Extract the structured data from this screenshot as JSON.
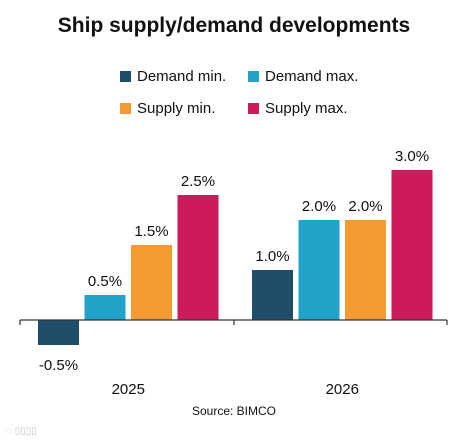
{
  "chart_data": {
    "type": "bar",
    "title": "Ship supply/demand developments",
    "categories": [
      "2025",
      "2026"
    ],
    "series": [
      {
        "name": "Demand min.",
        "color": "#1f4e6b",
        "values": [
          -0.5,
          1.0
        ]
      },
      {
        "name": "Demand max.",
        "color": "#1fa3c9",
        "values": [
          0.5,
          2.0
        ]
      },
      {
        "name": "Supply min.",
        "color": "#f39a33",
        "values": [
          1.5,
          2.0
        ]
      },
      {
        "name": "Supply max.",
        "color": "#cc1a5c",
        "values": [
          2.5,
          3.0
        ]
      }
    ],
    "value_labels": [
      [
        "-0.5%",
        "0.5%",
        "1.5%",
        "2.5%"
      ],
      [
        "1.0%",
        "2.0%",
        "2.0%",
        "3.0%"
      ]
    ],
    "ylim": [
      -0.6,
      3.2
    ],
    "grid": false,
    "legend_position": "top"
  },
  "source": "Source: BIMCO"
}
